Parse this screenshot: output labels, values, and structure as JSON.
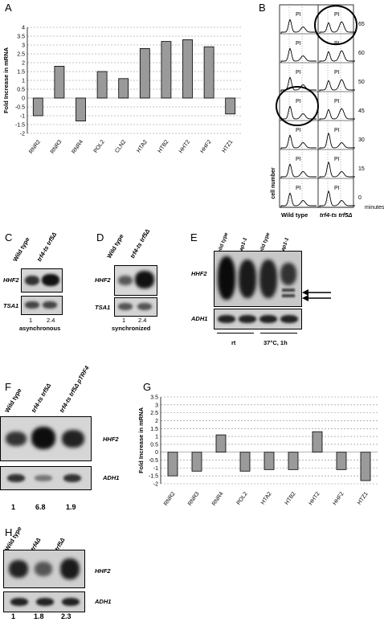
{
  "panels": {
    "A": "A",
    "B": "B",
    "C": "C",
    "D": "D",
    "E": "E",
    "F": "F",
    "G": "G",
    "H": "H"
  },
  "chart_data": [
    {
      "panel": "A",
      "type": "bar",
      "ylabel": "Fold Increase in mRNA",
      "ylim": [
        -2,
        4
      ],
      "yticks": [
        "4",
        "3.5",
        "3",
        "2.5",
        "2",
        "1.5",
        "1",
        "0.5",
        "0",
        "-0.5",
        "-1",
        "-1.5",
        "-2"
      ],
      "categories": [
        "RNR2",
        "RNR3",
        "RNR4",
        "POL2",
        "CLN2",
        "HTA2",
        "HTB2",
        "HHT2",
        "HHF2",
        "HTZ1"
      ],
      "values": [
        -1.0,
        1.8,
        -1.3,
        1.5,
        1.1,
        2.8,
        3.2,
        3.3,
        2.9,
        -0.9
      ],
      "grid": true
    },
    {
      "panel": "G",
      "type": "bar",
      "ylabel": "Fold Increase in mRNA",
      "ylim": [
        -2,
        3.5
      ],
      "yticks": [
        "3.5",
        "3",
        "2.5",
        "2",
        "1.5",
        "1",
        "0.5",
        "0",
        "-0.5",
        "-1",
        "-1.5",
        "-2"
      ],
      "categories": [
        "RNR2",
        "RNR3",
        "RNR4",
        "POL2",
        "HTA2",
        "HTB2",
        "HHT2",
        "HHF2",
        "HTZ1"
      ],
      "values": [
        -1.5,
        -1.2,
        1.1,
        -1.2,
        -1.1,
        -1.1,
        1.3,
        -1.1,
        -1.8
      ],
      "grid": true
    }
  ],
  "flow": {
    "minutes": [
      "65",
      "60",
      "50",
      "45",
      "30",
      "15",
      "0"
    ],
    "minutes_label": "minutes",
    "pi": "PI",
    "cell_number": "cell number",
    "col1": "Wild type",
    "col2": "trf4-ts trf5Δ"
  },
  "C": {
    "lane1": "Wild type",
    "lane2": "trf4-ts trf5Δ",
    "gene1": "HHF2",
    "gene2": "TSA1",
    "val1": "1",
    "val2": "2.4",
    "caption": "asynchronous"
  },
  "D": {
    "lane1": "Wild type",
    "lane2": "trf4-ts trf5Δ",
    "gene1": "HHF2",
    "gene2": "TSA1",
    "val1": "1",
    "val2": "2.4",
    "caption": "synchronized"
  },
  "E": {
    "lane1": "wild type",
    "lane2": "pap1-1",
    "lane3": "wild type",
    "lane4": "pap1-1",
    "gene1": "HHF2",
    "gene2": "ADH1",
    "cond1": "rt",
    "cond2": "37°C, 1h"
  },
  "F": {
    "lane1": "Wild type",
    "lane2": "trf4-ts trf5Δ",
    "lane3": "trf4-ts trf5Δ pTRF4",
    "gene1": "HHF2",
    "gene2": "ADH1",
    "val1": "1",
    "val2": "6.8",
    "val3": "1.9"
  },
  "H": {
    "lane1": "Wild type",
    "lane2": "trf4Δ",
    "lane3": "trf5Δ",
    "gene1": "HHF2",
    "gene2": "ADH1",
    "val1": "1",
    "val2": "1.8",
    "val3": "2.3"
  }
}
